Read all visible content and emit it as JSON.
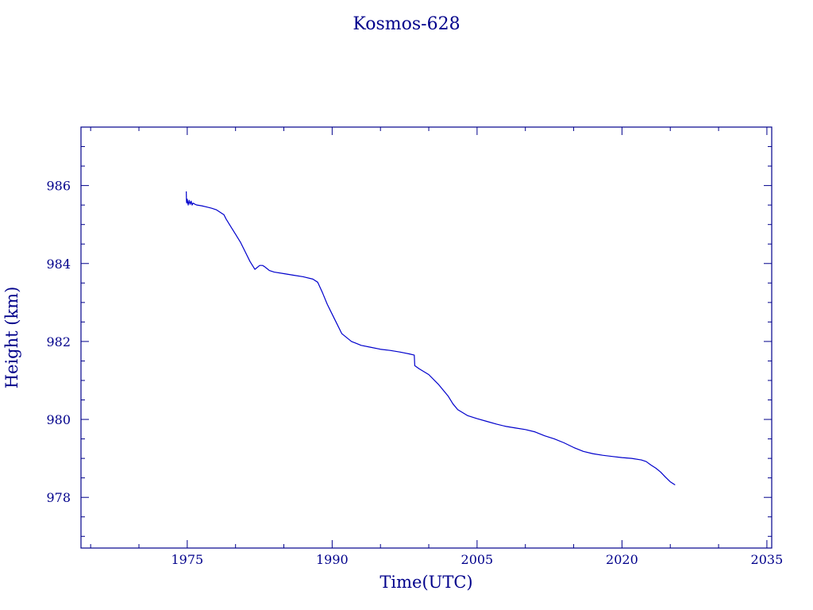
{
  "chart_data": {
    "type": "line",
    "title": "Kosmos-628",
    "xlabel": "Time(UTC)",
    "ylabel": "Height (km)",
    "xlim": [
      1964,
      2035.5
    ],
    "ylim": [
      976.7,
      987.5
    ],
    "x_ticks": [
      1975,
      1990,
      2005,
      2020,
      2035
    ],
    "y_ticks": [
      978,
      980,
      982,
      984,
      986
    ],
    "x_minor_step": 5,
    "y_minor_step": 0.5,
    "grid": false,
    "legend": "none",
    "colors": {
      "line": "#0000cc",
      "axis": "#00008b",
      "text": "#00008b"
    },
    "series": [
      {
        "x": [
          1974.9,
          1974.92,
          1974.95,
          1975.0,
          1975.1,
          1975.2,
          1975.3,
          1975.4,
          1975.5,
          1975.6,
          1975.8,
          1976.0,
          1976.5,
          1977.0,
          1977.5,
          1978.0,
          1978.5,
          1978.8,
          1979.0,
          1979.5,
          1980.0,
          1980.5,
          1981.0,
          1981.5,
          1982.0,
          1982.5,
          1982.8,
          1983.0,
          1983.2,
          1983.5,
          1984.0,
          1985.0,
          1986.0,
          1987.0,
          1988.0,
          1988.5,
          1989.0,
          1989.5,
          1990.0,
          1990.5,
          1991.0,
          1992.0,
          1992.5,
          1993.0,
          1994.0,
          1995.0,
          1996.0,
          1997.0,
          1998.0,
          1998.5,
          1998.55,
          1999.0,
          2000.0,
          2001.0,
          2001.5,
          2002.0,
          2002.5,
          2003.0,
          2004.0,
          2005.0,
          2006.0,
          2007.0,
          2008.0,
          2009.0,
          2010.0,
          2011.0,
          2012.0,
          2013.0,
          2014.0,
          2015.0,
          2016.0,
          2017.0,
          2018.0,
          2019.0,
          2020.0,
          2021.0,
          2022.0,
          2022.5,
          2023.0,
          2023.5,
          2024.0,
          2024.5,
          2025.0,
          2025.5
        ],
        "y": [
          985.85,
          985.6,
          985.55,
          985.65,
          985.5,
          985.62,
          985.52,
          985.6,
          985.5,
          985.55,
          985.52,
          985.5,
          985.48,
          985.45,
          985.42,
          985.38,
          985.3,
          985.25,
          985.15,
          984.95,
          984.75,
          984.55,
          984.3,
          984.05,
          983.85,
          983.95,
          983.95,
          983.92,
          983.88,
          983.82,
          983.78,
          983.74,
          983.7,
          983.66,
          983.6,
          983.52,
          983.25,
          982.95,
          982.7,
          982.45,
          982.2,
          982.0,
          981.95,
          981.9,
          981.85,
          981.8,
          981.77,
          981.73,
          981.68,
          981.65,
          981.38,
          981.3,
          981.15,
          980.9,
          980.75,
          980.6,
          980.4,
          980.25,
          980.1,
          980.02,
          979.95,
          979.88,
          979.82,
          979.78,
          979.74,
          979.68,
          979.58,
          979.5,
          979.4,
          979.28,
          979.18,
          979.12,
          979.08,
          979.05,
          979.02,
          979.0,
          978.96,
          978.92,
          978.83,
          978.75,
          978.65,
          978.52,
          978.4,
          978.32
        ]
      }
    ]
  }
}
